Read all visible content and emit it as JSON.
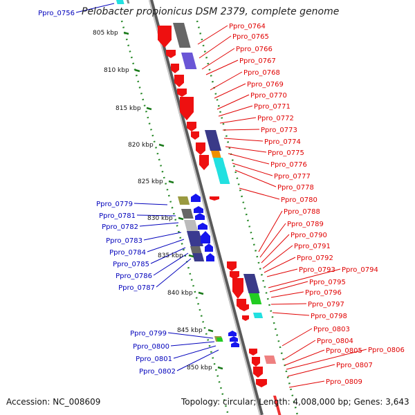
{
  "title": "Pelobacter propionicus DSM 2379, complete genome",
  "accession": "Accession: NC_008609",
  "summary": "Topology: circular; Length: 4,008,000 bp; Genes: 3,643",
  "colors": {
    "forward_label": "#e00000",
    "reverse_label": "#0000bb",
    "kbp_tick": "#1a7a1a",
    "backbone": "#8a8a8a"
  },
  "kbp_marks": [
    "805 kbp",
    "810 kbp",
    "815 kbp",
    "820 kbp",
    "825 kbp",
    "830 kbp",
    "835 kbp",
    "840 kbp",
    "845 kbp",
    "850 kbp"
  ],
  "reverse_genes": [
    "Ppro_0756",
    "Ppro_0779",
    "Ppro_0781",
    "Ppro_0782",
    "Ppro_0783",
    "Ppro_0784",
    "Ppro_0785",
    "Ppro_0786",
    "Ppro_0787",
    "Ppro_0799",
    "Ppro_0800",
    "Ppro_0801",
    "Ppro_0802"
  ],
  "forward_genes": [
    "Ppro_0764",
    "Ppro_0765",
    "Ppro_0766",
    "Ppro_0767",
    "Ppro_0768",
    "Ppro_0769",
    "Ppro_0770",
    "Ppro_0771",
    "Ppro_0772",
    "Ppro_0773",
    "Ppro_0774",
    "Ppro_0775",
    "Ppro_0776",
    "Ppro_0777",
    "Ppro_0778",
    "Ppro_0780",
    "Ppro_0788",
    "Ppro_0789",
    "Ppro_0790",
    "Ppro_0791",
    "Ppro_0792",
    "Ppro_0793",
    "Ppro_0794",
    "Ppro_0795",
    "Ppro_0796",
    "Ppro_0797",
    "Ppro_0798",
    "Ppro_0803",
    "Ppro_0804",
    "Ppro_0805",
    "Ppro_0806",
    "Ppro_0807",
    "Ppro_0809"
  ]
}
